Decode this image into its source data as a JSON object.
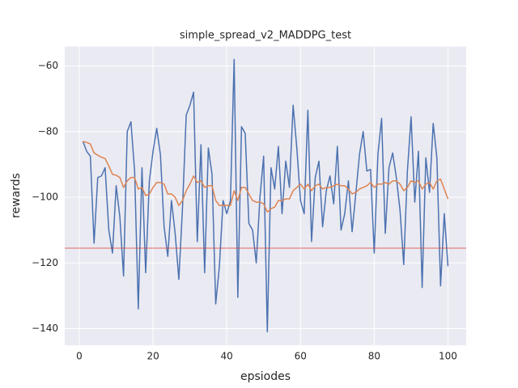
{
  "chart_data": {
    "type": "line",
    "title": "simple_spread_v2_MADDPG_test",
    "xlabel": "epsiodes",
    "ylabel": "rewards",
    "x": [
      1,
      2,
      3,
      4,
      5,
      6,
      7,
      8,
      9,
      10,
      11,
      12,
      13,
      14,
      15,
      16,
      17,
      18,
      19,
      20,
      21,
      22,
      23,
      24,
      25,
      26,
      27,
      28,
      29,
      30,
      31,
      32,
      33,
      34,
      35,
      36,
      37,
      38,
      39,
      40,
      41,
      42,
      43,
      44,
      45,
      46,
      47,
      48,
      49,
      50,
      51,
      52,
      53,
      54,
      55,
      56,
      57,
      58,
      59,
      60,
      61,
      62,
      63,
      64,
      65,
      66,
      67,
      68,
      69,
      70,
      71,
      72,
      73,
      74,
      75,
      76,
      77,
      78,
      79,
      80,
      81,
      82,
      83,
      84,
      85,
      86,
      87,
      88,
      89,
      90,
      91,
      92,
      93,
      94,
      95,
      96,
      97,
      98,
      99,
      100
    ],
    "series": [
      {
        "color": "#4c72b0",
        "values": [
          -83,
          -86,
          -87.5,
          -114,
          -94,
          -93.5,
          -91,
          -110,
          -117,
          -96.5,
          -106,
          -124,
          -80,
          -77,
          -92,
          -134,
          -91,
          -123,
          -95,
          -86,
          -79,
          -87,
          -109,
          -118,
          -101,
          -111,
          -125,
          -103,
          -75,
          -72,
          -68,
          -113.5,
          -84,
          -123,
          -85,
          -93,
          -132.5,
          -121,
          -101,
          -105,
          -101,
          -58,
          -130.5,
          -78.5,
          -80.5,
          -108,
          -110,
          -120,
          -100,
          -87.5,
          -141,
          -91,
          -97.5,
          -84.5,
          -105,
          -89,
          -97,
          -72,
          -85,
          -101,
          -105,
          -73.5,
          -113.5,
          -94,
          -89,
          -109,
          -98,
          -93.5,
          -102,
          -84.5,
          -110,
          -105,
          -95,
          -110.5,
          -99,
          -87,
          -80,
          -92,
          -91.5,
          -117,
          -87,
          -76,
          -111,
          -91,
          -86.5,
          -94,
          -104,
          -120.5,
          -92,
          -75.5,
          -101.5,
          -86,
          -127.5,
          -88,
          -98.5,
          -77.5,
          -88,
          -127,
          -105,
          -121
        ]
      },
      {
        "color": "#dd8452",
        "values": [
          -83,
          -83.3,
          -83.8,
          -86.5,
          -87.2,
          -87.8,
          -88.2,
          -90.5,
          -93,
          -93.3,
          -94,
          -97,
          -95,
          -94,
          -94,
          -97.5,
          -97,
          -99.5,
          -99,
          -97,
          -95.5,
          -95.5,
          -96,
          -99,
          -99,
          -100,
          -102.5,
          -101,
          -98,
          -96,
          -93.5,
          -95.5,
          -95,
          -97,
          -96.5,
          -96.5,
          -101,
          -102.5,
          -102.5,
          -102.5,
          -102.5,
          -98,
          -101,
          -97,
          -97,
          -99,
          -101,
          -101.5,
          -101.5,
          -102,
          -104.5,
          -103.5,
          -103,
          -101,
          -101,
          -100.5,
          -100.5,
          -98,
          -97,
          -96,
          -97.5,
          -96,
          -98,
          -96.5,
          -96,
          -97.5,
          -97,
          -97,
          -96.5,
          -96,
          -96.5,
          -96.5,
          -97.5,
          -99,
          -98.5,
          -97.5,
          -97,
          -96.5,
          -95.5,
          -97,
          -96,
          -96,
          -95.5,
          -96,
          -95,
          -95,
          -96,
          -98,
          -97,
          -95,
          -95.5,
          -95,
          -97.5,
          -96,
          -95.5,
          -97.5,
          -95,
          -94.5,
          -97.5,
          -100.5
        ]
      }
    ],
    "reference_line": {
      "value": -115.5,
      "color": "#e03c31"
    },
    "xlim": [
      -3.95,
      104.95
    ],
    "ylim": [
      -145.1,
      -54.1
    ],
    "xticks": [
      0,
      20,
      40,
      60,
      80,
      100
    ],
    "yticks": [
      {
        "value": -140,
        "label": "−140"
      },
      {
        "value": -120,
        "label": "−120"
      },
      {
        "value": -100,
        "label": "−100"
      },
      {
        "value": -80,
        "label": "−80"
      },
      {
        "value": -60,
        "label": "−60"
      }
    ],
    "grid": true,
    "background": "#eaeaf2"
  }
}
